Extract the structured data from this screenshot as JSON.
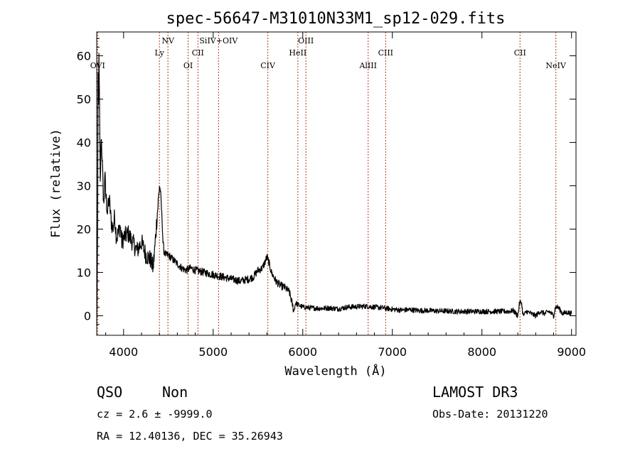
{
  "chart_data": {
    "type": "line",
    "title": "spec-56647-M31010N33M1_sp12-029.fits",
    "xlabel": "Wavelength (Å)",
    "ylabel": "Flux (relative)",
    "xlim": [
      3700,
      9050
    ],
    "ylim": [
      -4.5,
      65.5
    ],
    "x_ticks": [
      4000,
      5000,
      6000,
      7000,
      8000,
      9000
    ],
    "y_ticks": [
      0,
      10,
      20,
      30,
      40,
      50,
      60
    ],
    "line_color": "#000000",
    "marker_color": "#b03a1e",
    "lines": [
      {
        "name": "OVI",
        "wavelength": 3710,
        "row": 3
      },
      {
        "name": "Ly",
        "wavelength": 4400,
        "row": 2
      },
      {
        "name": "NV",
        "wavelength": 4495,
        "row": 0
      },
      {
        "name": "OI",
        "wavelength": 4720,
        "row": 3
      },
      {
        "name": "CII",
        "wavelength": 4830,
        "row": 2
      },
      {
        "name": "SiIV+OIV",
        "wavelength": 5060,
        "row": 0
      },
      {
        "name": "CIV",
        "wavelength": 5610,
        "row": 3
      },
      {
        "name": "HeII",
        "wavelength": 5945,
        "row": 2
      },
      {
        "name": "OIII",
        "wavelength": 6035,
        "row": 0
      },
      {
        "name": "AlIII",
        "wavelength": 6730,
        "row": 3
      },
      {
        "name": "CIII",
        "wavelength": 6925,
        "row": 2
      },
      {
        "name": "CII",
        "wavelength": 8425,
        "row": 1
      },
      {
        "name": "NeIV",
        "wavelength": 8825,
        "row": 3
      }
    ],
    "spectrum": {
      "x": [
        3700,
        3710,
        3715,
        3720,
        3725,
        3730,
        3740,
        3750,
        3760,
        3770,
        3780,
        3790,
        3800,
        3820,
        3840,
        3860,
        3880,
        3900,
        3920,
        3940,
        3960,
        3980,
        4000,
        4050,
        4100,
        4150,
        4200,
        4250,
        4300,
        4330,
        4350,
        4370,
        4390,
        4400,
        4410,
        4420,
        4430,
        4440,
        4450,
        4470,
        4500,
        4550,
        4600,
        4650,
        4700,
        4750,
        4800,
        4900,
        5000,
        5100,
        5200,
        5300,
        5400,
        5450,
        5500,
        5550,
        5580,
        5600,
        5620,
        5650,
        5700,
        5750,
        5800,
        5850,
        5880,
        5900,
        5920,
        5950,
        6000,
        6100,
        6200,
        6300,
        6400,
        6500,
        6600,
        6700,
        6800,
        6900,
        7000,
        7100,
        7200,
        7300,
        7400,
        7500,
        7600,
        7700,
        7800,
        7900,
        8000,
        8100,
        8200,
        8300,
        8350,
        8400,
        8420,
        8440,
        8460,
        8500,
        8550,
        8600,
        8650,
        8700,
        8750,
        8800,
        8820,
        8850,
        8900,
        8950,
        9000
      ],
      "y": [
        -3,
        20,
        55,
        48,
        62,
        50,
        30,
        42,
        37,
        30,
        25,
        33,
        28,
        24,
        27,
        22,
        20,
        23,
        18,
        19,
        21,
        17,
        18,
        19,
        17,
        15,
        17,
        14,
        13,
        11,
        16,
        22,
        27,
        30,
        29,
        26,
        22,
        17,
        15,
        14,
        14,
        13,
        12,
        11,
        10.5,
        11,
        10.5,
        10,
        9.5,
        9,
        8.5,
        8,
        8.5,
        9,
        10.5,
        11,
        12.5,
        13.5,
        12.5,
        10,
        8,
        7,
        6.5,
        5.5,
        3,
        1,
        3,
        2.5,
        2,
        1.8,
        1.7,
        1.8,
        1.6,
        2,
        2.1,
        2.2,
        2,
        1.8,
        1.5,
        1.3,
        1.4,
        1.2,
        1.2,
        1.1,
        1.1,
        1,
        1,
        1,
        1,
        1,
        1,
        1,
        1.2,
        0,
        3,
        3.2,
        0,
        1,
        0.5,
        0,
        1,
        0.5,
        1,
        0,
        2,
        2,
        0.5,
        0.8,
        0.5
      ]
    }
  },
  "footer": {
    "class_label": "QSO",
    "subclass_label": "Non",
    "survey": "LAMOST DR3",
    "cz": "cz = 2.6 ± -9999.0",
    "obs_date": "Obs-Date: 20131220",
    "radec": "RA =  12.40136, DEC =  35.26943"
  }
}
